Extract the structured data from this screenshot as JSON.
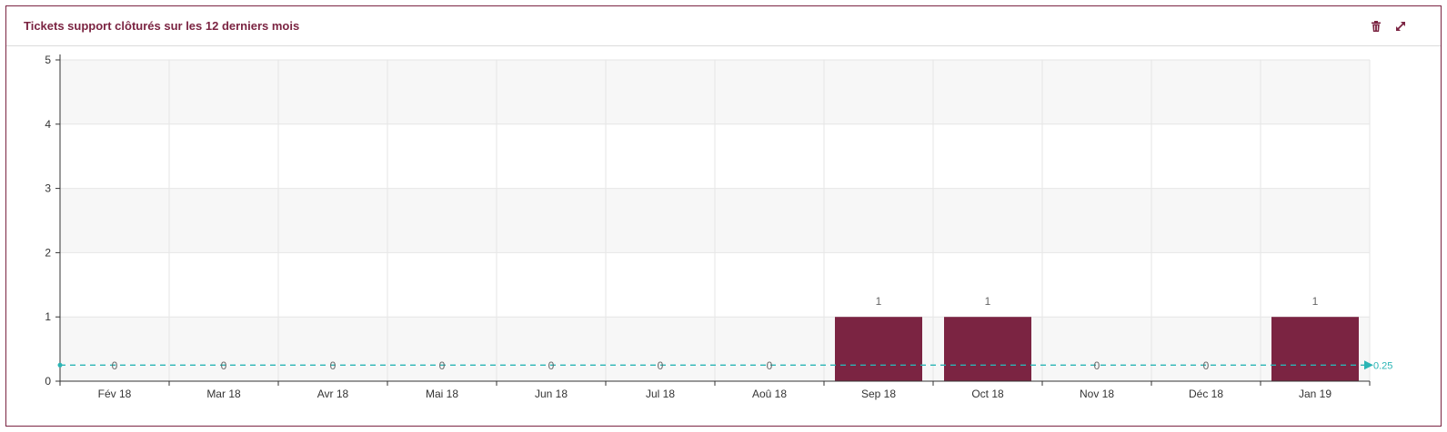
{
  "widget": {
    "title": "Tickets support clôturés sur les 12 derniers mois",
    "icons": {
      "delete": "trash-icon",
      "expand": "expand-icon"
    }
  },
  "colors": {
    "bar": "#7b2442",
    "reference": "#2bb5b5",
    "title": "#7b2442"
  },
  "chart_data": {
    "type": "bar",
    "categories": [
      "Fév 18",
      "Mar 18",
      "Avr 18",
      "Mai 18",
      "Jun 18",
      "Jul 18",
      "Aoû 18",
      "Sep 18",
      "Oct 18",
      "Nov 18",
      "Déc 18",
      "Jan 19"
    ],
    "values": [
      0,
      0,
      0,
      0,
      0,
      0,
      0,
      1,
      1,
      0,
      0,
      1
    ],
    "data_labels": [
      "0",
      "0",
      "0",
      "0",
      "0",
      "0",
      "0",
      "1",
      "1",
      "0",
      "0",
      "1"
    ],
    "ylim": [
      0,
      5
    ],
    "yticks": [
      "0",
      "1",
      "2",
      "3",
      "4",
      "5"
    ],
    "reference_line": {
      "value": 0.25,
      "label": "0.25",
      "style": "dashed"
    },
    "grid": true,
    "title": "",
    "xlabel": "",
    "ylabel": ""
  }
}
